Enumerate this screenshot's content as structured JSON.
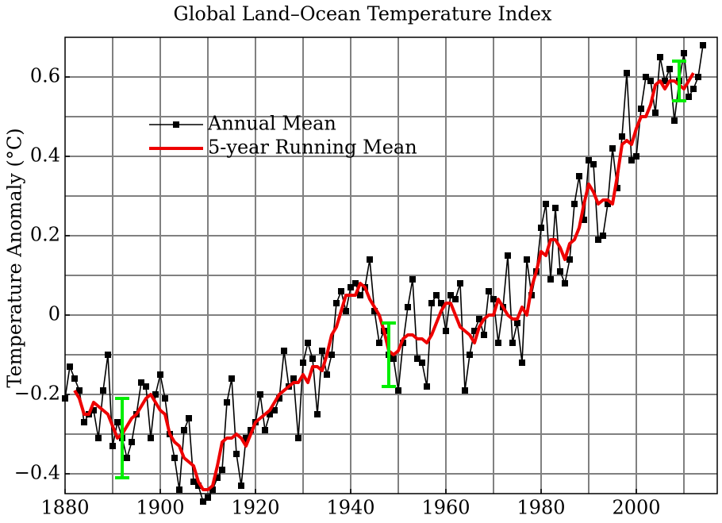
{
  "chart_data": {
    "type": "line",
    "title": "Global Land–Ocean Temperature Index",
    "ylabel": "Temperature Anomaly (°C)",
    "xlim": [
      1880,
      2017
    ],
    "ylim": [
      -0.45,
      0.7
    ],
    "xticks": [
      1880,
      1900,
      1920,
      1940,
      1960,
      1980,
      2000
    ],
    "yticks": [
      {
        "value": -0.4,
        "label": "−0.4"
      },
      {
        "value": -0.2,
        "label": "−0.2"
      },
      0,
      0.2,
      0.4,
      0.6
    ],
    "grid": true,
    "xgrid": [
      1890,
      1900,
      1910,
      1920,
      1930,
      1940,
      1950,
      1960,
      1970,
      1980,
      1990,
      2000,
      2010
    ],
    "ygrid": [
      -0.4,
      -0.3,
      -0.2,
      -0.1,
      0,
      0.1,
      0.2,
      0.3,
      0.4,
      0.5,
      0.6
    ],
    "legend": "upper left",
    "series": [
      {
        "name": "Annual Mean",
        "color": "#000000",
        "marker": "square",
        "x": [
          1880,
          1881,
          1882,
          1883,
          1884,
          1885,
          1886,
          1887,
          1888,
          1889,
          1890,
          1891,
          1892,
          1893,
          1894,
          1895,
          1896,
          1897,
          1898,
          1899,
          1900,
          1901,
          1902,
          1903,
          1904,
          1905,
          1906,
          1907,
          1908,
          1909,
          1910,
          1911,
          1912,
          1913,
          1914,
          1915,
          1916,
          1917,
          1918,
          1919,
          1920,
          1921,
          1922,
          1923,
          1924,
          1925,
          1926,
          1927,
          1928,
          1929,
          1930,
          1931,
          1932,
          1933,
          1934,
          1935,
          1936,
          1937,
          1938,
          1939,
          1940,
          1941,
          1942,
          1943,
          1944,
          1945,
          1946,
          1947,
          1948,
          1949,
          1950,
          1951,
          1952,
          1953,
          1954,
          1955,
          1956,
          1957,
          1958,
          1959,
          1960,
          1961,
          1962,
          1963,
          1964,
          1965,
          1966,
          1967,
          1968,
          1969,
          1970,
          1971,
          1972,
          1973,
          1974,
          1975,
          1976,
          1977,
          1978,
          1979,
          1980,
          1981,
          1982,
          1983,
          1984,
          1985,
          1986,
          1987,
          1988,
          1989,
          1990,
          1991,
          1992,
          1993,
          1994,
          1995,
          1996,
          1997,
          1998,
          1999,
          2000,
          2001,
          2002,
          2003,
          2004,
          2005,
          2006,
          2007,
          2008,
          2009,
          2010,
          2011,
          2012,
          2013,
          2014
        ],
        "values": [
          -0.21,
          -0.13,
          -0.16,
          -0.19,
          -0.27,
          -0.25,
          -0.24,
          -0.31,
          -0.19,
          -0.1,
          -0.33,
          -0.27,
          -0.31,
          -0.36,
          -0.32,
          -0.25,
          -0.17,
          -0.18,
          -0.31,
          -0.2,
          -0.15,
          -0.21,
          -0.3,
          -0.36,
          -0.44,
          -0.29,
          -0.26,
          -0.42,
          -0.43,
          -0.47,
          -0.46,
          -0.44,
          -0.41,
          -0.39,
          -0.22,
          -0.16,
          -0.35,
          -0.43,
          -0.31,
          -0.29,
          -0.27,
          -0.2,
          -0.29,
          -0.25,
          -0.24,
          -0.21,
          -0.09,
          -0.18,
          -0.16,
          -0.31,
          -0.12,
          -0.07,
          -0.11,
          -0.25,
          -0.09,
          -0.15,
          -0.1,
          0.03,
          0.06,
          0.01,
          0.07,
          0.08,
          0.05,
          0.07,
          0.14,
          0.01,
          -0.07,
          -0.04,
          -0.1,
          -0.11,
          -0.19,
          -0.07,
          0.02,
          0.09,
          -0.11,
          -0.12,
          -0.18,
          0.03,
          0.05,
          0.03,
          -0.04,
          0.05,
          0.04,
          0.08,
          -0.19,
          -0.1,
          -0.04,
          -0.01,
          -0.05,
          0.06,
          0.04,
          -0.07,
          0.02,
          0.15,
          -0.07,
          -0.02,
          -0.12,
          0.14,
          0.05,
          0.11,
          0.22,
          0.28,
          0.09,
          0.27,
          0.11,
          0.08,
          0.14,
          0.28,
          0.35,
          0.24,
          0.39,
          0.38,
          0.19,
          0.2,
          0.28,
          0.42,
          0.32,
          0.45,
          0.61,
          0.39,
          0.4,
          0.52,
          0.6,
          0.59,
          0.51,
          0.65,
          0.59,
          0.62,
          0.49,
          0.59,
          0.66,
          0.55,
          0.57,
          0.6,
          0.68
        ]
      },
      {
        "name": "5-year Running Mean",
        "color": "#ee0000",
        "x": [
          1882,
          1883,
          1884,
          1885,
          1886,
          1887,
          1888,
          1889,
          1890,
          1891,
          1892,
          1893,
          1894,
          1895,
          1896,
          1897,
          1898,
          1899,
          1900,
          1901,
          1902,
          1903,
          1904,
          1905,
          1906,
          1907,
          1908,
          1909,
          1910,
          1911,
          1912,
          1913,
          1914,
          1915,
          1916,
          1917,
          1918,
          1919,
          1920,
          1921,
          1922,
          1923,
          1924,
          1925,
          1926,
          1927,
          1928,
          1929,
          1930,
          1931,
          1932,
          1933,
          1934,
          1935,
          1936,
          1937,
          1938,
          1939,
          1940,
          1941,
          1942,
          1943,
          1944,
          1945,
          1946,
          1947,
          1948,
          1949,
          1950,
          1951,
          1952,
          1953,
          1954,
          1955,
          1956,
          1957,
          1958,
          1959,
          1960,
          1961,
          1962,
          1963,
          1964,
          1965,
          1966,
          1967,
          1968,
          1969,
          1970,
          1971,
          1972,
          1973,
          1974,
          1975,
          1976,
          1977,
          1978,
          1979,
          1980,
          1981,
          1982,
          1983,
          1984,
          1985,
          1986,
          1987,
          1988,
          1989,
          1990,
          1991,
          1992,
          1993,
          1994,
          1995,
          1996,
          1997,
          1998,
          1999,
          2000,
          2001,
          2002,
          2003,
          2004,
          2005,
          2006,
          2007,
          2008,
          2009,
          2010,
          2011,
          2012
        ],
        "values": [
          -0.19,
          -0.21,
          -0.25,
          -0.25,
          -0.22,
          -0.23,
          -0.24,
          -0.25,
          -0.28,
          -0.31,
          -0.3,
          -0.28,
          -0.26,
          -0.25,
          -0.23,
          -0.21,
          -0.2,
          -0.22,
          -0.24,
          -0.25,
          -0.3,
          -0.32,
          -0.33,
          -0.36,
          -0.37,
          -0.38,
          -0.42,
          -0.44,
          -0.44,
          -0.43,
          -0.38,
          -0.32,
          -0.31,
          -0.31,
          -0.3,
          -0.31,
          -0.33,
          -0.3,
          -0.27,
          -0.26,
          -0.25,
          -0.24,
          -0.22,
          -0.2,
          -0.19,
          -0.18,
          -0.17,
          -0.17,
          -0.15,
          -0.17,
          -0.13,
          -0.13,
          -0.14,
          -0.1,
          -0.05,
          -0.03,
          0.01,
          0.05,
          0.05,
          0.05,
          0.08,
          0.07,
          0.04,
          0.02,
          0.0,
          -0.04,
          -0.09,
          -0.1,
          -0.09,
          -0.06,
          -0.05,
          -0.05,
          -0.06,
          -0.06,
          -0.07,
          -0.05,
          -0.02,
          0.01,
          0.03,
          0.03,
          0.0,
          -0.03,
          -0.04,
          -0.05,
          -0.07,
          -0.03,
          -0.01,
          0.0,
          0.0,
          0.04,
          0.02,
          0.0,
          -0.01,
          -0.01,
          0.02,
          0.0,
          0.07,
          0.11,
          0.16,
          0.15,
          0.19,
          0.19,
          0.17,
          0.14,
          0.18,
          0.19,
          0.22,
          0.28,
          0.33,
          0.31,
          0.28,
          0.29,
          0.29,
          0.28,
          0.35,
          0.43,
          0.44,
          0.43,
          0.47,
          0.5,
          0.5,
          0.53,
          0.58,
          0.59,
          0.57,
          0.59,
          0.59,
          0.58,
          0.57,
          0.59,
          0.61
        ]
      }
    ],
    "error_bars": {
      "color": "#00ee00",
      "x": [
        1892,
        1948,
        2009
      ],
      "low": [
        -0.41,
        -0.18,
        0.54
      ],
      "high": [
        -0.21,
        -0.02,
        0.64
      ]
    }
  }
}
